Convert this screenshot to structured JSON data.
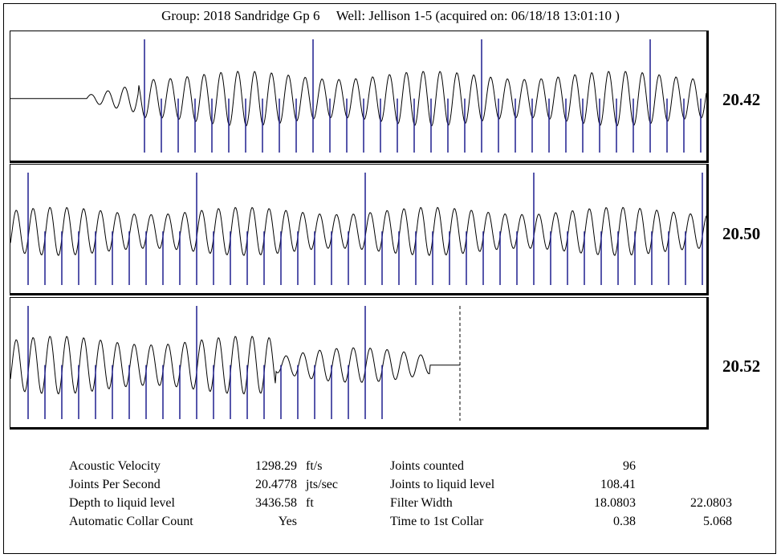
{
  "header": {
    "group": "Group: 2018 Sandridge Gp 6",
    "well": "Well: Jellison 1-5 (acquired on: 06/18/18 13:01:10 )"
  },
  "chart_data": [
    {
      "type": "line",
      "panel": 1,
      "joints_per_second_label": "20.42",
      "signal": "flat line then damped onset at ~cycle 7, then steady oscillation of ~34 cycles",
      "flat_fraction": 0.11,
      "onset_cycles": 3,
      "major_marks": 4,
      "minor_marks_between_majors": 9
    },
    {
      "type": "line",
      "panel": 2,
      "joints_per_second_label": "20.50",
      "signal": "steady oscillation across full width",
      "major_marks": 4,
      "minor_marks_between_majors": 9
    },
    {
      "type": "line",
      "panel": 3,
      "joints_per_second_label": "20.52",
      "signal": "oscillation ending near liquid level, followed by flat line; dashed marker at liquid level",
      "major_marks": 2,
      "minor_marks_between_majors": 9
    }
  ],
  "stats": {
    "left": [
      {
        "label": "Acoustic Velocity",
        "value": "1298.29",
        "unit": "ft/s"
      },
      {
        "label": "Joints Per Second",
        "value": "20.4778",
        "unit": "jts/sec"
      },
      {
        "label": "Depth to liquid level",
        "value": "3436.58",
        "unit": "ft"
      },
      {
        "label": "Automatic Collar Count",
        "value": "Yes",
        "unit": ""
      }
    ],
    "right": [
      {
        "label": "Joints counted",
        "value": "96",
        "value2": ""
      },
      {
        "label": "Joints to liquid level",
        "value": "108.41",
        "value2": ""
      },
      {
        "label": "Filter Width",
        "value": "18.0803",
        "value2": "22.0803"
      },
      {
        "label": "Time to 1st Collar",
        "value": "0.38",
        "value2": "5.068"
      }
    ]
  },
  "colors": {
    "trace": "#000000",
    "marks": "#1f1f8f",
    "liquid_marker": "#000000"
  }
}
